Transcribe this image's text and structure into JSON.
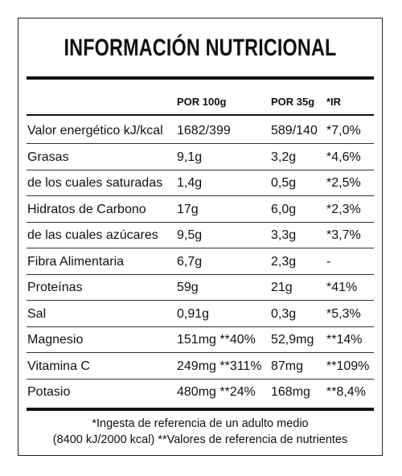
{
  "title": "INFORMACIÓN NUTRICIONAL",
  "headers": {
    "per100": "POR 100g",
    "per35": "POR 35g",
    "ir": "*IR"
  },
  "rows": [
    {
      "name": "Valor energético kJ/kcal",
      "per100": "1682/399",
      "per35": "589/140",
      "ir": "*7,0%"
    },
    {
      "name": "Grasas",
      "per100": "9,1g",
      "per35": "3,2g",
      "ir": "*4,6%"
    },
    {
      "name": "de los cuales saturadas",
      "per100": "1,4g",
      "per35": "0,5g",
      "ir": "*2,5%"
    },
    {
      "name": "Hidratos de Carbono",
      "per100": "17g",
      "per35": "6,0g",
      "ir": "*2,3%"
    },
    {
      "name": "de las cuales azúcares",
      "per100": "9,5g",
      "per35": "3,3g",
      "ir": "*3,7%"
    },
    {
      "name": "Fibra Alimentaria",
      "per100": "6,7g",
      "per35": "2,3g",
      "ir": "-"
    },
    {
      "name": "Proteínas",
      "per100": "59g",
      "per35": "21g",
      "ir": "*41%"
    },
    {
      "name": "Sal",
      "per100": "0,91g",
      "per35": "0,3g",
      "ir": "*5,3%"
    },
    {
      "name": "Magnesio",
      "per100": "151mg **40%",
      "per35": "52,9mg",
      "ir": "**14%"
    },
    {
      "name": "Vitamina C",
      "per100": "249mg **311%",
      "per35": "87mg",
      "ir": "**109%"
    },
    {
      "name": "Potasio",
      "per100": "480mg **24%",
      "per35": "168mg",
      "ir": "**8,4%"
    }
  ],
  "footer": {
    "line1": "*Ingesta de referencia de un adulto medio",
    "line2": "(8400 kJ/2000 kcal) **Valores de referencia de nutrientes"
  }
}
